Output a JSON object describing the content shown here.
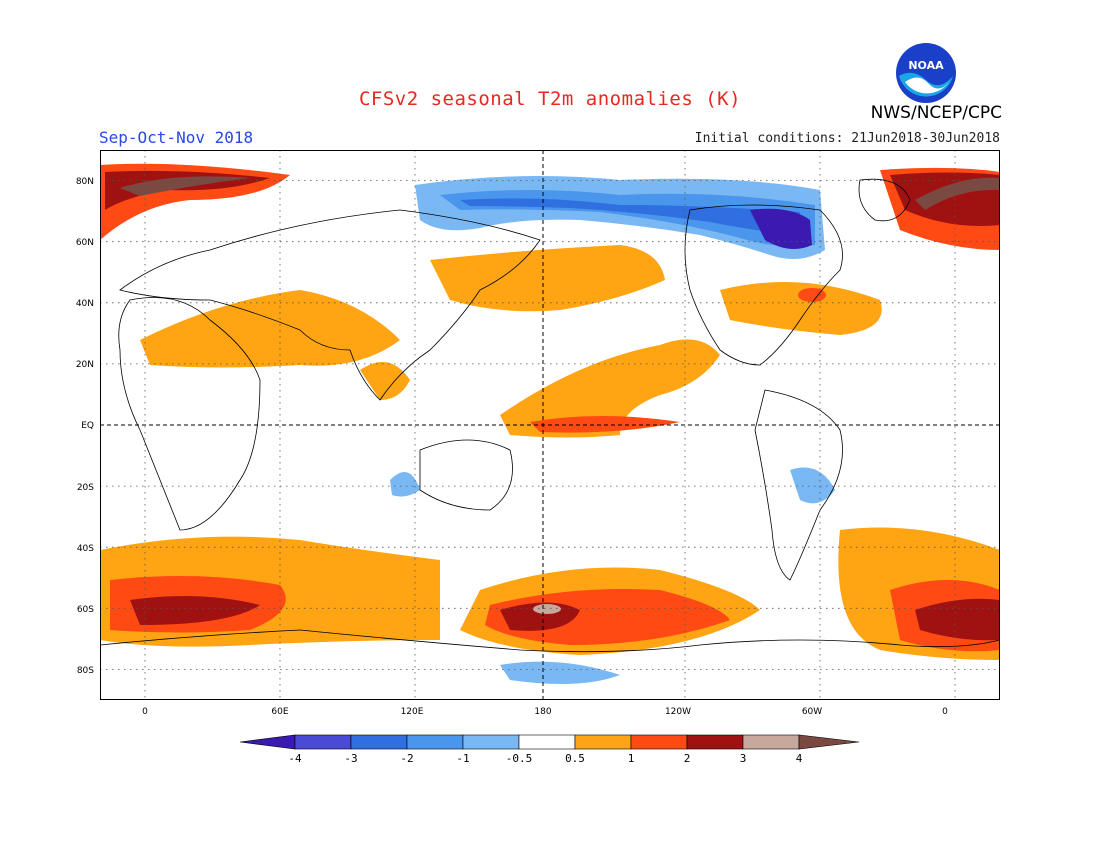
{
  "header": {
    "title": "CFSv2 seasonal T2m anomalies (K)",
    "season": "Sep-Oct-Nov 2018",
    "initial_conditions": "Initial conditions: 21Jun2018-30Jun2018",
    "agency": "NWS/NCEP/CPC",
    "logo_text": "NOAA"
  },
  "map": {
    "lat_labels": [
      "80N",
      "60N",
      "40N",
      "20N",
      "EQ",
      "20S",
      "40S",
      "60S",
      "80S"
    ],
    "lon_labels": [
      "0",
      "60E",
      "120E",
      "180",
      "120W",
      "60W",
      "0"
    ],
    "lat_range": [
      -90,
      90
    ],
    "lon_range": [
      -20,
      380
    ]
  },
  "legend": {
    "labels": [
      "-4",
      "-3",
      "-2",
      "-1",
      "-0.5",
      "0.5",
      "1",
      "2",
      "3",
      "4"
    ],
    "colors": [
      "#3a1ab0",
      "#4a4ad6",
      "#2f6fe0",
      "#4a96ec",
      "#7ab8f4",
      "#ffffff",
      "#ffa412",
      "#ff4a14",
      "#a01212",
      "#c8a89c",
      "#7a4a42"
    ]
  }
}
